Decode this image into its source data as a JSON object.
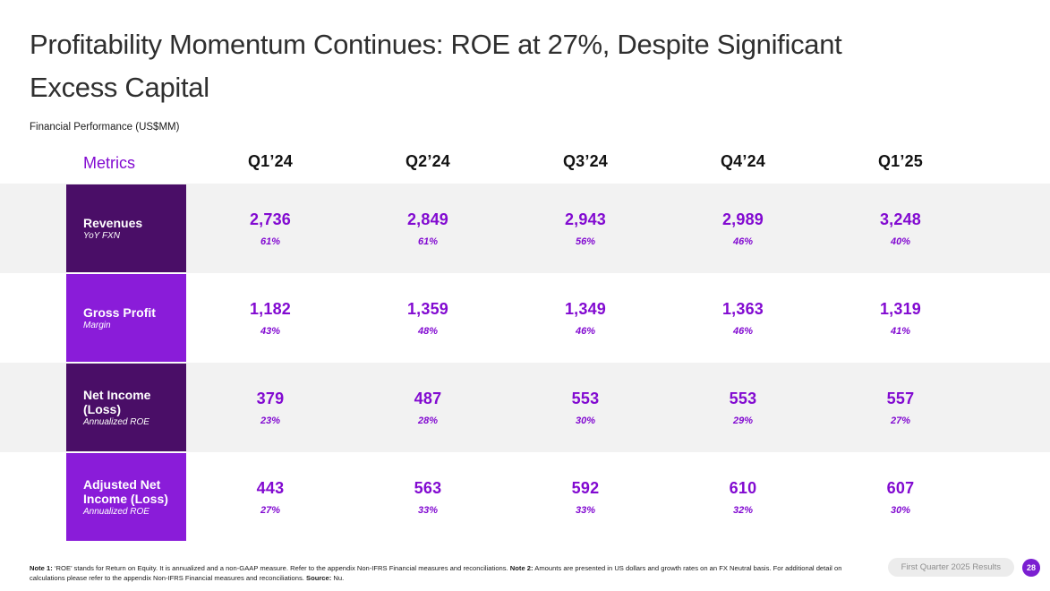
{
  "slide": {
    "title_line1": "Profitability Momentum Continues: ROE at 27%, Despite Significant",
    "title_line2": "Excess Capital",
    "subtitle": "Financial Performance (US$MM)"
  },
  "table": {
    "metrics_header": "Metrics",
    "columns": [
      "Q1’24",
      "Q2’24",
      "Q3’24",
      "Q4’24",
      "Q1’25"
    ],
    "rows": [
      {
        "label": "Revenues",
        "sublabel": "YoY FXN",
        "values": [
          "2,736",
          "2,849",
          "2,943",
          "2,989",
          "3,248"
        ],
        "subvalues": [
          "61%",
          "61%",
          "56%",
          "46%",
          "40%"
        ]
      },
      {
        "label": "Gross Profit",
        "sublabel": "Margin",
        "values": [
          "1,182",
          "1,359",
          "1,349",
          "1,363",
          "1,319"
        ],
        "subvalues": [
          "43%",
          "48%",
          "46%",
          "46%",
          "41%"
        ]
      },
      {
        "label": "Net Income (Loss)",
        "sublabel": "Annualized ROE",
        "values": [
          "379",
          "487",
          "553",
          "553",
          "557"
        ],
        "subvalues": [
          "23%",
          "28%",
          "30%",
          "29%",
          "27%"
        ]
      },
      {
        "label": "Adjusted Net Income (Loss)",
        "sublabel": "Annualized ROE",
        "values": [
          "443",
          "563",
          "592",
          "610",
          "607"
        ],
        "subvalues": [
          "27%",
          "33%",
          "33%",
          "32%",
          "30%"
        ]
      }
    ]
  },
  "chart_data": {
    "type": "table",
    "title": "Financial Performance (US$MM)",
    "categories": [
      "Q1’24",
      "Q2’24",
      "Q3’24",
      "Q4’24",
      "Q1’25"
    ],
    "series": [
      {
        "name": "Revenues",
        "values": [
          2736,
          2849,
          2943,
          2989,
          3248
        ]
      },
      {
        "name": "Revenues YoY FXN %",
        "values": [
          61,
          61,
          56,
          46,
          40
        ]
      },
      {
        "name": "Gross Profit",
        "values": [
          1182,
          1359,
          1349,
          1363,
          1319
        ]
      },
      {
        "name": "Gross Profit Margin %",
        "values": [
          43,
          48,
          46,
          46,
          41
        ]
      },
      {
        "name": "Net Income (Loss)",
        "values": [
          379,
          487,
          553,
          553,
          557
        ]
      },
      {
        "name": "Net Income Annualized ROE %",
        "values": [
          23,
          28,
          30,
          29,
          27
        ]
      },
      {
        "name": "Adjusted Net Income (Loss)",
        "values": [
          443,
          563,
          592,
          610,
          607
        ]
      },
      {
        "name": "Adjusted Net Income Annualized ROE %",
        "values": [
          27,
          33,
          33,
          32,
          30
        ]
      }
    ]
  },
  "footnote": {
    "note1_label": "Note 1:",
    "note1_text": "‘ROE’ stands for Return on Equity. It is annualized and a non-GAAP measure. Refer to the appendix Non-IFRS Financial measures and reconciliations.",
    "note2_label": "Note 2:",
    "note2_text": "Amounts are presented in US dollars and growth rates on an FX Neutral basis. For additional detail on calculations please refer to the appendix Non-IFRS Financial measures and reconciliations.",
    "source_label": "Source:",
    "source_text": "Nu."
  },
  "footer": {
    "results_label": "First Quarter 2025 Results",
    "page_number": "28"
  },
  "colors": {
    "accent_purple": "#820AD1",
    "dark_purple_box": "#4A0E67",
    "bright_purple_box": "#8A1CD9",
    "row_stripe_gray": "#f2f2f2",
    "page_badge_purple": "#7B1FD1"
  }
}
